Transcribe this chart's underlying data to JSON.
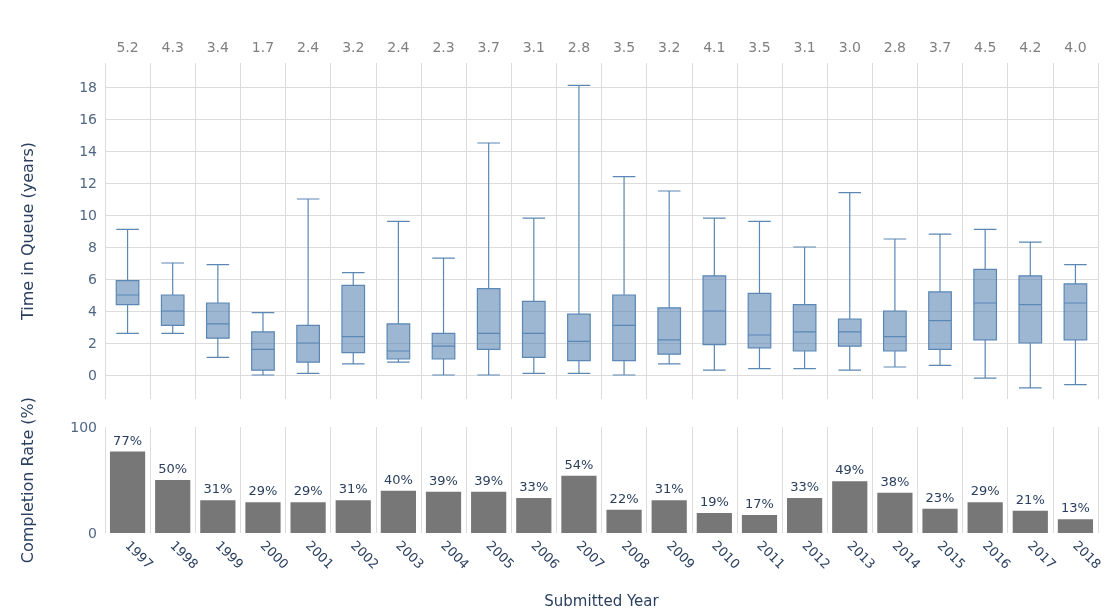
{
  "chart_data": [
    {
      "type": "box",
      "ylabel": "Time in Queue (years)",
      "categories": [
        "1997",
        "1998",
        "1999",
        "2000",
        "2001",
        "2002",
        "2003",
        "2004",
        "2005",
        "2006",
        "2007",
        "2008",
        "2009",
        "2010",
        "2011",
        "2012",
        "2013",
        "2014",
        "2015",
        "2016",
        "2017",
        "2018"
      ],
      "series": [
        {
          "color": "#5b87b5",
          "boxes": [
            {
              "low": 2.6,
              "q1": 4.4,
              "median": 5.0,
              "q3": 5.9,
              "high": 9.1
            },
            {
              "low": 2.6,
              "q1": 3.1,
              "median": 4.0,
              "q3": 5.0,
              "high": 7.0
            },
            {
              "low": 1.1,
              "q1": 2.3,
              "median": 3.2,
              "q3": 4.5,
              "high": 6.9
            },
            {
              "low": 0.0,
              "q1": 0.3,
              "median": 1.6,
              "q3": 2.7,
              "high": 3.9
            },
            {
              "low": 0.1,
              "q1": 0.8,
              "median": 2.0,
              "q3": 3.1,
              "high": 11.0
            },
            {
              "low": 0.7,
              "q1": 1.4,
              "median": 2.4,
              "q3": 5.6,
              "high": 6.4
            },
            {
              "low": 0.8,
              "q1": 1.0,
              "median": 1.5,
              "q3": 3.2,
              "high": 9.6
            },
            {
              "low": 0.0,
              "q1": 1.0,
              "median": 1.8,
              "q3": 2.6,
              "high": 7.3
            },
            {
              "low": 0.0,
              "q1": 1.6,
              "median": 2.6,
              "q3": 5.4,
              "high": 14.5
            },
            {
              "low": 0.1,
              "q1": 1.1,
              "median": 2.6,
              "q3": 4.6,
              "high": 9.8
            },
            {
              "low": 0.1,
              "q1": 0.9,
              "median": 2.1,
              "q3": 3.8,
              "high": 18.1
            },
            {
              "low": 0.0,
              "q1": 0.9,
              "median": 3.1,
              "q3": 5.0,
              "high": 12.4
            },
            {
              "low": 0.7,
              "q1": 1.3,
              "median": 2.2,
              "q3": 4.2,
              "high": 11.5
            },
            {
              "low": 0.3,
              "q1": 1.9,
              "median": 4.0,
              "q3": 6.2,
              "high": 9.8
            },
            {
              "low": 0.4,
              "q1": 1.7,
              "median": 2.5,
              "q3": 5.1,
              "high": 9.6
            },
            {
              "low": 0.4,
              "q1": 1.5,
              "median": 2.7,
              "q3": 4.4,
              "high": 8.0
            },
            {
              "low": 0.3,
              "q1": 1.8,
              "median": 2.7,
              "q3": 3.5,
              "high": 11.4
            },
            {
              "low": 0.5,
              "q1": 1.5,
              "median": 2.4,
              "q3": 4.0,
              "high": 8.5
            },
            {
              "low": 0.6,
              "q1": 1.6,
              "median": 3.4,
              "q3": 5.2,
              "high": 8.8
            },
            {
              "low": -0.2,
              "q1": 2.2,
              "median": 4.5,
              "q3": 6.6,
              "high": 9.1
            },
            {
              "low": -0.8,
              "q1": 2.0,
              "median": 4.4,
              "q3": 6.2,
              "high": 8.3
            },
            {
              "low": -0.6,
              "q1": 2.2,
              "median": 4.5,
              "q3": 5.7,
              "high": 6.9
            }
          ]
        }
      ],
      "ylim": [
        -1.5,
        19.5
      ],
      "yticks": [
        0,
        2,
        4,
        6,
        8,
        10,
        12,
        14,
        16,
        18
      ],
      "grid": true,
      "tick_labels": "y",
      "annotations": [
        "5.2",
        "4.3",
        "3.4",
        "1.7",
        "2.4",
        "3.2",
        "2.4",
        "2.3",
        "3.7",
        "3.1",
        "2.8",
        "3.5",
        "3.2",
        "4.1",
        "3.5",
        "3.1",
        "3.0",
        "2.8",
        "3.7",
        "4.5",
        "4.2",
        "4.0"
      ]
    },
    {
      "type": "bar",
      "ylabel": "Completion Rate (%)",
      "xlabel": "Submitted Year",
      "categories": [
        "1997",
        "1998",
        "1999",
        "2000",
        "2001",
        "2002",
        "2003",
        "2004",
        "2005",
        "2006",
        "2007",
        "2008",
        "2009",
        "2010",
        "2011",
        "2012",
        "2013",
        "2014",
        "2015",
        "2016",
        "2017",
        "2018"
      ],
      "values": [
        77,
        50,
        31,
        29,
        29,
        31,
        40,
        39,
        39,
        33,
        54,
        22,
        31,
        19,
        17,
        33,
        49,
        38,
        23,
        29,
        21,
        13
      ],
      "value_labels": [
        "77%",
        "50%",
        "31%",
        "29%",
        "29%",
        "31%",
        "40%",
        "39%",
        "39%",
        "33%",
        "54%",
        "22%",
        "31%",
        "19%",
        "17%",
        "33%",
        "49%",
        "38%",
        "23%",
        "29%",
        "21%",
        "13%"
      ],
      "color": "#777777",
      "ylim": [
        0,
        100
      ],
      "yticks": [
        0,
        100
      ],
      "grid": "x"
    }
  ]
}
